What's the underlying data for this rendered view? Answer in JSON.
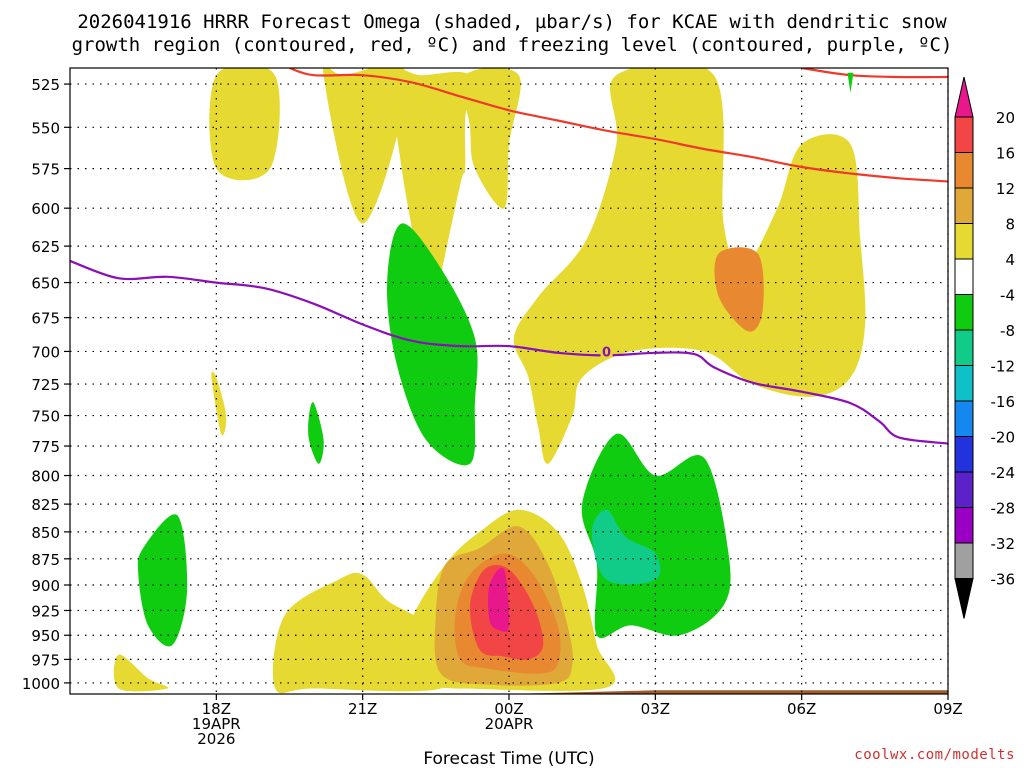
{
  "chart_data": {
    "type": "contour",
    "title_lines": [
      "2026041916 HRRR Forecast Omega (shaded, µbar/s) for KCAE with dendritic snow",
      "growth region (contoured, red, ºC) and freezing level (contoured, purple, ºC)"
    ],
    "xlabel": "Forecast Time (UTC)",
    "credit": "coolwx.com/modelts",
    "x_unit": "hours since 2026-04-19 15Z",
    "xlim": [
      0,
      18
    ],
    "x_ticks": [
      {
        "x": 3,
        "lines": [
          "18Z",
          "19APR",
          "2026"
        ]
      },
      {
        "x": 6,
        "lines": [
          "21Z"
        ]
      },
      {
        "x": 9,
        "lines": [
          "00Z",
          "20APR"
        ]
      },
      {
        "x": 12,
        "lines": [
          "03Z"
        ]
      },
      {
        "x": 15,
        "lines": [
          "06Z"
        ]
      },
      {
        "x": 18,
        "lines": [
          "09Z"
        ]
      }
    ],
    "y_unit": "mb",
    "y_scale": "log",
    "ylim": [
      1012,
      516
    ],
    "y_ticks": [
      525,
      550,
      575,
      600,
      625,
      650,
      675,
      700,
      725,
      750,
      775,
      800,
      825,
      850,
      875,
      900,
      925,
      950,
      975,
      1000
    ],
    "colorbar": {
      "levels": [
        -36,
        -32,
        -28,
        -24,
        -20,
        -16,
        -12,
        -8,
        -4,
        4,
        8,
        12,
        16,
        20
      ],
      "colors": [
        "#a0a0a0",
        "#9a00c4",
        "#5a22c8",
        "#2233dd",
        "#1488ee",
        "#10c0c8",
        "#10cc88",
        "#10cc10",
        "#ffffff",
        "#e6da32",
        "#e0a838",
        "#e88830",
        "#f24545",
        "#e8188c"
      ],
      "low_color": "#000000",
      "high_color": "#e8188c"
    },
    "ground_color": "#a05a2c",
    "ground": [
      {
        "x": 0,
        "p": 1012
      },
      {
        "x": 9,
        "p": 1012
      },
      {
        "x": 12,
        "p": 1008
      },
      {
        "x": 18,
        "p": 1008
      }
    ],
    "omega_regions": [
      {
        "level": 4,
        "points": [
          [
            3.0,
            520
          ],
          [
            4.2,
            520
          ],
          [
            4.1,
            575
          ],
          [
            3.0,
            575
          ]
        ]
      },
      {
        "level": 4,
        "points": [
          [
            5.6,
            520
          ],
          [
            6.9,
            520
          ],
          [
            6.0,
            610
          ],
          [
            5.2,
            520
          ]
        ]
      },
      {
        "level": 4,
        "points": [
          [
            1.0,
            970
          ],
          [
            1.6,
            995
          ],
          [
            2.0,
            1006
          ],
          [
            1.0,
            1006
          ]
        ]
      },
      {
        "level": 4,
        "points": [
          [
            5.0,
            1006
          ],
          [
            4.2,
            1005
          ],
          [
            4.4,
            930
          ],
          [
            5.5,
            895
          ],
          [
            6.0,
            890
          ],
          [
            6.5,
            915
          ],
          [
            7.2,
            935
          ],
          [
            7.6,
            965
          ],
          [
            7.6,
            1006
          ]
        ]
      },
      {
        "level": 4,
        "points": [
          [
            7.2,
            520
          ],
          [
            8.2,
            520
          ],
          [
            8.1,
            545
          ],
          [
            8.1,
            575
          ],
          [
            8.0,
            585
          ],
          [
            7.5,
            660
          ],
          [
            7.3,
            680
          ],
          [
            7.1,
            630
          ],
          [
            6.8,
            575
          ],
          [
            6.6,
            520
          ]
        ]
      },
      {
        "level": 4,
        "points": [
          [
            8.0,
            1006
          ],
          [
            7.4,
            1000
          ],
          [
            7.2,
            960
          ],
          [
            7.0,
            935
          ],
          [
            7.7,
            880
          ],
          [
            8.4,
            850
          ],
          [
            9.2,
            830
          ],
          [
            10.0,
            850
          ],
          [
            10.5,
            900
          ],
          [
            10.8,
            960
          ],
          [
            11.0,
            1005
          ],
          [
            8.0,
            1006
          ]
        ]
      },
      {
        "level": 4,
        "points": [
          [
            8.1,
            520
          ],
          [
            9.2,
            520
          ],
          [
            9.0,
            560
          ],
          [
            8.9,
            600
          ],
          [
            8.3,
            575
          ],
          [
            8.2,
            550
          ]
        ]
      },
      {
        "level": 4,
        "points": [
          [
            9.1,
            690
          ],
          [
            9.6,
            660
          ],
          [
            10.6,
            620
          ],
          [
            11.2,
            560
          ],
          [
            11.2,
            520
          ],
          [
            13.2,
            520
          ],
          [
            13.4,
            610
          ],
          [
            13.8,
            640
          ],
          [
            14.5,
            600
          ],
          [
            15.0,
            560
          ],
          [
            16.0,
            560
          ],
          [
            16.2,
            620
          ],
          [
            16.3,
            680
          ],
          [
            16.0,
            720
          ],
          [
            15.2,
            735
          ],
          [
            14.0,
            725
          ],
          [
            13.0,
            700
          ],
          [
            11.5,
            700
          ],
          [
            10.5,
            720
          ],
          [
            10.3,
            750
          ],
          [
            9.8,
            790
          ],
          [
            9.6,
            760
          ],
          [
            9.4,
            720
          ]
        ]
      },
      {
        "level": 12,
        "points": [
          [
            13.3,
            630
          ],
          [
            14.1,
            630
          ],
          [
            14.2,
            670
          ],
          [
            13.9,
            685
          ],
          [
            13.3,
            660
          ]
        ]
      },
      {
        "level": 4,
        "points": [
          [
            2.9,
            720
          ],
          [
            3.1,
            765
          ],
          [
            3.2,
            750
          ],
          [
            3.0,
            720
          ]
        ]
      },
      {
        "level": -4,
        "points": [
          [
            1.5,
            865
          ],
          [
            2.2,
            835
          ],
          [
            2.4,
            905
          ],
          [
            2.1,
            960
          ],
          [
            1.6,
            940
          ],
          [
            1.4,
            890
          ]
        ]
      },
      {
        "level": -4,
        "points": [
          [
            6.8,
            610
          ],
          [
            7.6,
            640
          ],
          [
            8.3,
            690
          ],
          [
            8.3,
            740
          ],
          [
            8.2,
            790
          ],
          [
            7.3,
            770
          ],
          [
            6.7,
            710
          ],
          [
            6.5,
            650
          ]
        ]
      },
      {
        "level": -4,
        "points": [
          [
            5.0,
            740
          ],
          [
            5.2,
            770
          ],
          [
            5.1,
            790
          ],
          [
            4.9,
            770
          ],
          [
            4.9,
            750
          ]
        ]
      },
      {
        "level": -4,
        "points": [
          [
            10.5,
            825
          ],
          [
            11.2,
            765
          ],
          [
            12.0,
            800
          ],
          [
            13.0,
            785
          ],
          [
            13.5,
            870
          ],
          [
            13.4,
            920
          ],
          [
            12.5,
            950
          ],
          [
            11.5,
            940
          ],
          [
            10.8,
            950
          ],
          [
            10.8,
            880
          ]
        ]
      },
      {
        "level": -8,
        "points": [
          [
            10.7,
            850
          ],
          [
            11.0,
            830
          ],
          [
            11.4,
            855
          ],
          [
            12.0,
            870
          ],
          [
            12.0,
            895
          ],
          [
            11.0,
            895
          ]
        ]
      },
      {
        "level": 8,
        "points": [
          [
            7.6,
            990
          ],
          [
            7.5,
            930
          ],
          [
            7.7,
            880
          ],
          [
            8.4,
            865
          ],
          [
            9.2,
            845
          ],
          [
            9.8,
            880
          ],
          [
            10.2,
            940
          ],
          [
            10.3,
            980
          ],
          [
            10.0,
            1000
          ],
          [
            8.6,
            1002
          ]
        ]
      },
      {
        "level": 12,
        "points": [
          [
            8.0,
            975
          ],
          [
            7.9,
            930
          ],
          [
            8.2,
            890
          ],
          [
            8.9,
            870
          ],
          [
            9.5,
            890
          ],
          [
            10.0,
            940
          ],
          [
            10.0,
            980
          ],
          [
            9.6,
            990
          ],
          [
            8.6,
            985
          ]
        ]
      },
      {
        "level": 16,
        "points": [
          [
            8.4,
            965
          ],
          [
            8.2,
            920
          ],
          [
            8.5,
            885
          ],
          [
            9.0,
            885
          ],
          [
            9.5,
            920
          ],
          [
            9.7,
            960
          ],
          [
            9.4,
            975
          ],
          [
            8.9,
            972
          ]
        ]
      },
      {
        "level": 20,
        "points": [
          [
            8.9,
            885
          ],
          [
            9.0,
            940
          ],
          [
            8.8,
            945
          ],
          [
            8.6,
            935
          ],
          [
            8.6,
            900
          ]
        ]
      }
    ],
    "dgz_contours": [
      {
        "name": "red",
        "color": "#ee3a2a",
        "points": [
          [
            4.5,
            516
          ],
          [
            5.0,
            520
          ],
          [
            6.0,
            520
          ],
          [
            7.0,
            524
          ],
          [
            8.0,
            532
          ],
          [
            9.0,
            540
          ],
          [
            10.0,
            546
          ],
          [
            11.0,
            552
          ],
          [
            12.0,
            557
          ],
          [
            13.0,
            563
          ],
          [
            14.0,
            568
          ],
          [
            15.0,
            574
          ],
          [
            16.0,
            578
          ],
          [
            17.0,
            581
          ],
          [
            18.0,
            583
          ]
        ]
      },
      {
        "name": "red-top",
        "color": "#ee3a2a",
        "points": [
          [
            15.0,
            516
          ],
          [
            16.0,
            520
          ],
          [
            17.0,
            521
          ],
          [
            18.0,
            521
          ]
        ]
      }
    ],
    "freezing_level": {
      "color": "#8a10b8",
      "label": "0",
      "label_at": [
        11.0,
        700
      ],
      "points": [
        [
          0,
          635
        ],
        [
          1,
          647
        ],
        [
          2,
          646
        ],
        [
          3,
          650
        ],
        [
          4,
          654
        ],
        [
          5,
          665
        ],
        [
          6,
          680
        ],
        [
          7,
          692
        ],
        [
          8,
          696
        ],
        [
          9,
          696
        ],
        [
          10,
          701
        ],
        [
          11,
          703
        ],
        [
          12,
          701
        ],
        [
          12.8,
          702
        ],
        [
          13.2,
          712
        ],
        [
          14,
          724
        ],
        [
          15,
          731
        ],
        [
          16,
          740
        ],
        [
          16.6,
          755
        ],
        [
          17.0,
          768
        ],
        [
          18,
          773
        ]
      ]
    },
    "high_marker": {
      "x": 16.0,
      "p": 522,
      "color": "#10cc10"
    }
  }
}
